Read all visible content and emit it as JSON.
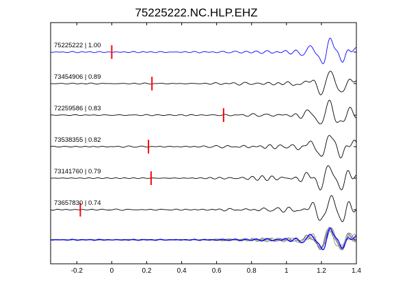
{
  "chart_data": {
    "type": "line",
    "title": "75225222.NC.HLP.EHZ",
    "xlabel": "",
    "ylabel": "",
    "xlim": [
      -0.35,
      1.4
    ],
    "xticks": [
      -0.2,
      0,
      0.2,
      0.4,
      0.6,
      0.8,
      1,
      1.2,
      1.4
    ],
    "xtick_labels": [
      "-0.2",
      "0",
      "0.2",
      "0.4",
      "0.6",
      "0.8",
      "1",
      "1.2",
      "1.4"
    ],
    "grid": false,
    "series": [
      {
        "name": "75225222 | 1.00",
        "color": "#0000ff",
        "pick_time": 0.0,
        "seed": 3
      },
      {
        "name": "73454906 | 0.89",
        "color": "#000000",
        "pick_time": 0.23,
        "seed": 7
      },
      {
        "name": "72259586 | 0.83",
        "color": "#000000",
        "pick_time": 0.64,
        "seed": 11
      },
      {
        "name": "73538355 | 0.82",
        "color": "#000000",
        "pick_time": 0.21,
        "seed": 19
      },
      {
        "name": "73141760 | 0.79",
        "color": "#000000",
        "pick_time": 0.225,
        "seed": 23
      },
      {
        "name": "73657830 | 0.74",
        "color": "#000000",
        "pick_time": -0.18,
        "seed": 29
      }
    ],
    "stack": {
      "overlay_colors": [
        "#808080",
        "#0000ff"
      ]
    },
    "pick_color": "#ff0000"
  }
}
